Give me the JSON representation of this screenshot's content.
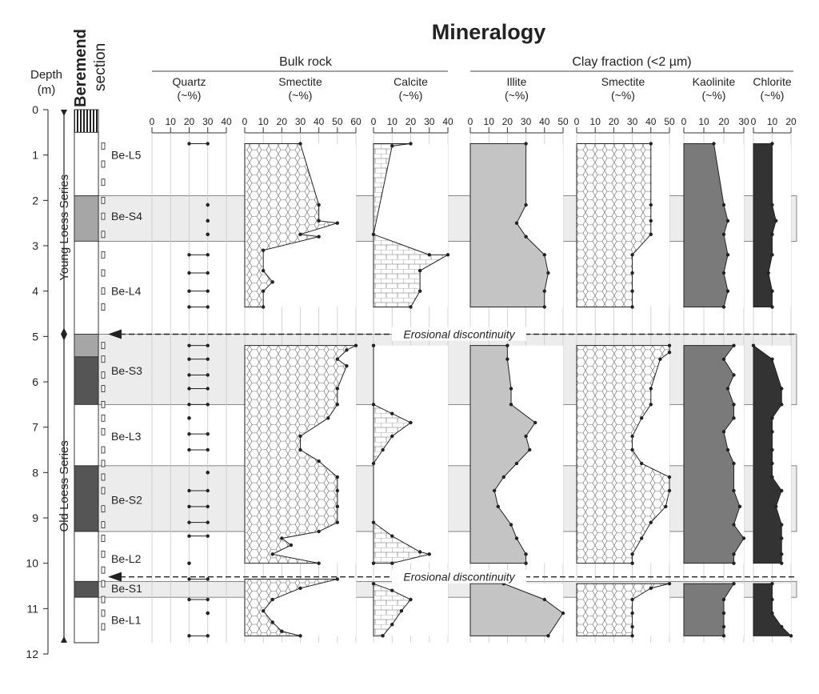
{
  "chart_data": {
    "type": "line",
    "title": "Mineralogy",
    "depth_axis": {
      "label_line1": "Depth",
      "label_line2": "(m)",
      "range": [
        0,
        12
      ],
      "ticks": [
        0,
        1,
        2,
        3,
        4,
        5,
        6,
        7,
        8,
        9,
        10,
        11,
        12
      ]
    },
    "section_label_line1": "Beremend",
    "section_label_line2": "section",
    "series_labels": {
      "young": "Young Loess Series",
      "old": "Old Loess Series"
    },
    "group_labels": {
      "bulk": "Bulk rock",
      "clay": "Clay fraction (<2 µm)"
    },
    "units": [
      {
        "name": "Be-L5",
        "depth": 1.0
      },
      {
        "name": "Be-S4",
        "depth": 2.35
      },
      {
        "name": "Be-L4",
        "depth": 4.0
      },
      {
        "name": "Be-S3",
        "depth": 5.75
      },
      {
        "name": "Be-L3",
        "depth": 7.2
      },
      {
        "name": "Be-S2",
        "depth": 8.6
      },
      {
        "name": "Be-L2",
        "depth": 9.9
      },
      {
        "name": "Be-S1",
        "depth": 10.55
      },
      {
        "name": "Be-L1",
        "depth": 11.25
      }
    ],
    "bands": [
      [
        1.9,
        2.9
      ],
      [
        4.95,
        6.5
      ],
      [
        7.85,
        9.3
      ],
      [
        10.4,
        10.75
      ]
    ],
    "column_blocks": [
      {
        "from": 0.0,
        "to": 0.5,
        "fill": "hatch"
      },
      {
        "from": 0.5,
        "to": 1.9,
        "fill": "white"
      },
      {
        "from": 1.9,
        "to": 2.9,
        "fill": "#a6a6a6"
      },
      {
        "from": 2.9,
        "to": 4.95,
        "fill": "white"
      },
      {
        "from": 4.95,
        "to": 5.45,
        "fill": "#a6a6a6"
      },
      {
        "from": 5.45,
        "to": 6.5,
        "fill": "#555555"
      },
      {
        "from": 6.5,
        "to": 7.85,
        "fill": "white"
      },
      {
        "from": 7.85,
        "to": 9.3,
        "fill": "#555555"
      },
      {
        "from": 9.3,
        "to": 10.4,
        "fill": "white"
      },
      {
        "from": 10.4,
        "to": 10.75,
        "fill": "#555555"
      },
      {
        "from": 10.75,
        "to": 11.75,
        "fill": "white"
      }
    ],
    "sample_depths": [
      0.8,
      1.2,
      1.6,
      2.0,
      2.35,
      2.75,
      3.2,
      3.6,
      4.0,
      4.35,
      5.2,
      5.5,
      5.85,
      6.15,
      6.5,
      6.8,
      7.1,
      7.5,
      7.8,
      8.1,
      8.4,
      8.8,
      9.15,
      9.45,
      9.8,
      10.15,
      10.45,
      10.8,
      11.1,
      11.4
    ],
    "discontinuities": [
      {
        "depth": 4.95,
        "label": "Erosional discontinuity"
      },
      {
        "depth": 10.3,
        "label": "Erosional discontinuity"
      }
    ],
    "panels": [
      {
        "key": "quartz",
        "label": "Quartz",
        "unit": "(~%)",
        "group": "bulk",
        "xlim": [
          0,
          40
        ],
        "ticks": [
          0,
          10,
          20,
          30,
          40
        ],
        "style": "range",
        "points": [
          [
            0.75,
            20,
            30
          ],
          [
            2.1,
            30,
            30
          ],
          [
            2.45,
            30,
            30
          ],
          [
            2.75,
            30,
            30
          ],
          [
            3.2,
            20,
            30
          ],
          [
            3.6,
            20,
            30
          ],
          [
            4.0,
            20,
            30
          ],
          [
            4.35,
            20,
            30
          ],
          [
            5.2,
            20,
            30
          ],
          [
            5.5,
            20,
            30
          ],
          [
            5.85,
            20,
            30
          ],
          [
            6.15,
            20,
            30
          ],
          [
            6.5,
            20,
            30
          ],
          [
            6.8,
            20,
            20
          ],
          [
            7.15,
            20,
            30
          ],
          [
            7.5,
            20,
            30
          ],
          [
            8.0,
            30,
            30
          ],
          [
            8.4,
            20,
            30
          ],
          [
            8.75,
            20,
            30
          ],
          [
            9.1,
            20,
            30
          ],
          [
            9.4,
            20,
            30
          ],
          [
            10.0,
            20,
            20
          ],
          [
            10.35,
            20,
            30
          ],
          [
            10.8,
            20,
            30
          ],
          [
            11.1,
            30,
            30
          ],
          [
            11.6,
            20,
            30
          ]
        ]
      },
      {
        "key": "bulk_smectite",
        "label": "Smectite",
        "unit": "(~%)",
        "group": "bulk",
        "xlim": [
          0,
          60
        ],
        "ticks": [
          0,
          10,
          20,
          30,
          40,
          50,
          60
        ],
        "style": "area",
        "fill": "hex",
        "segments": [
          [
            [
              0.75,
              30
            ],
            [
              2.1,
              40
            ],
            [
              2.45,
              40
            ],
            [
              2.5,
              50
            ],
            [
              2.75,
              30
            ],
            [
              2.8,
              40
            ],
            [
              3.1,
              10
            ],
            [
              3.55,
              10
            ],
            [
              3.8,
              15
            ],
            [
              4.0,
              10
            ],
            [
              4.35,
              10
            ]
          ],
          [
            [
              5.2,
              60
            ],
            [
              5.3,
              55
            ],
            [
              5.5,
              50
            ],
            [
              5.65,
              55
            ],
            [
              6.15,
              50
            ],
            [
              6.5,
              50
            ],
            [
              6.8,
              45
            ],
            [
              7.2,
              30
            ],
            [
              7.5,
              30
            ],
            [
              7.75,
              40
            ],
            [
              8.1,
              50
            ],
            [
              8.4,
              50
            ],
            [
              8.75,
              50
            ],
            [
              9.1,
              50
            ],
            [
              9.3,
              40
            ],
            [
              9.45,
              20
            ],
            [
              9.6,
              25
            ],
            [
              9.8,
              15
            ],
            [
              10.0,
              40
            ]
          ],
          [
            [
              10.35,
              50
            ],
            [
              10.55,
              30
            ],
            [
              10.8,
              15
            ],
            [
              11.05,
              10
            ],
            [
              11.3,
              15
            ],
            [
              11.5,
              20
            ],
            [
              11.6,
              30
            ]
          ]
        ]
      },
      {
        "key": "calcite",
        "label": "Calcite",
        "unit": "(~%)",
        "group": "bulk",
        "xlim": [
          0,
          40
        ],
        "ticks": [
          0,
          10,
          20,
          30,
          40
        ],
        "style": "area",
        "fill": "brick",
        "segments": [
          [
            [
              0.75,
              20
            ],
            [
              0.8,
              10
            ],
            [
              2.75,
              0
            ],
            [
              3.2,
              30
            ],
            [
              3.2,
              40
            ],
            [
              3.55,
              25
            ],
            [
              4.0,
              25
            ],
            [
              4.35,
              20
            ]
          ],
          [
            [
              5.2,
              0
            ],
            [
              6.5,
              0
            ],
            [
              6.7,
              10
            ],
            [
              6.9,
              20
            ],
            [
              7.2,
              10
            ],
            [
              7.5,
              5
            ],
            [
              7.8,
              0
            ],
            [
              9.1,
              0
            ],
            [
              9.4,
              10
            ],
            [
              9.75,
              25
            ],
            [
              9.8,
              30
            ],
            [
              10.0,
              10
            ],
            [
              10.0,
              0
            ]
          ],
          [
            [
              10.45,
              0
            ],
            [
              10.6,
              10
            ],
            [
              10.8,
              20
            ],
            [
              11.05,
              15
            ],
            [
              11.35,
              10
            ],
            [
              11.6,
              5
            ]
          ]
        ]
      },
      {
        "key": "illite",
        "label": "Illite",
        "unit": "(~%)",
        "group": "clay",
        "xlim": [
          0,
          50
        ],
        "ticks": [
          0,
          10,
          20,
          30,
          40,
          50
        ],
        "style": "area",
        "fill": "#c4c4c4",
        "segments": [
          [
            [
              0.75,
              30
            ],
            [
              2.1,
              30
            ],
            [
              2.5,
              25
            ],
            [
              2.8,
              30
            ],
            [
              3.2,
              40
            ],
            [
              3.6,
              42
            ],
            [
              4.0,
              40
            ],
            [
              4.35,
              40
            ]
          ],
          [
            [
              5.2,
              20
            ],
            [
              5.5,
              20
            ],
            [
              6.15,
              22
            ],
            [
              6.5,
              22
            ],
            [
              6.9,
              35
            ],
            [
              7.2,
              30
            ],
            [
              7.5,
              32
            ],
            [
              7.8,
              25
            ],
            [
              8.1,
              18
            ],
            [
              8.4,
              13
            ],
            [
              8.75,
              15
            ],
            [
              9.15,
              22
            ],
            [
              9.45,
              25
            ],
            [
              9.8,
              30
            ],
            [
              10.0,
              30
            ]
          ],
          [
            [
              10.45,
              18
            ],
            [
              10.8,
              40
            ],
            [
              11.1,
              50
            ],
            [
              11.6,
              42
            ]
          ]
        ]
      },
      {
        "key": "clay_smectite",
        "label": "Smectite",
        "unit": "(~%)",
        "group": "clay",
        "xlim": [
          0,
          50
        ],
        "ticks": [
          0,
          10,
          20,
          30,
          40,
          50
        ],
        "style": "area",
        "fill": "hex",
        "segments": [
          [
            [
              0.75,
              40
            ],
            [
              2.1,
              40
            ],
            [
              2.45,
              40
            ],
            [
              2.75,
              40
            ],
            [
              3.2,
              30
            ],
            [
              3.6,
              30
            ],
            [
              4.0,
              30
            ],
            [
              4.35,
              30
            ]
          ],
          [
            [
              5.2,
              50
            ],
            [
              5.35,
              50
            ],
            [
              5.5,
              45
            ],
            [
              6.15,
              40
            ],
            [
              6.5,
              40
            ],
            [
              6.8,
              35
            ],
            [
              7.2,
              30
            ],
            [
              7.5,
              30
            ],
            [
              7.8,
              35
            ],
            [
              8.1,
              50
            ],
            [
              8.4,
              50
            ],
            [
              8.75,
              48
            ],
            [
              9.1,
              40
            ],
            [
              9.45,
              35
            ],
            [
              9.8,
              30
            ],
            [
              10.0,
              30
            ]
          ],
          [
            [
              10.45,
              50
            ],
            [
              10.55,
              40
            ],
            [
              10.8,
              30
            ],
            [
              11.1,
              30
            ],
            [
              11.4,
              30
            ],
            [
              11.6,
              30
            ]
          ]
        ]
      },
      {
        "key": "kaolinite",
        "label": "Kaolinite",
        "unit": "(~%)",
        "group": "clay",
        "xlim": [
          0,
          30
        ],
        "ticks": [
          0,
          10,
          20,
          30
        ],
        "style": "area",
        "fill": "#7a7a7a",
        "segments": [
          [
            [
              0.75,
              15
            ],
            [
              2.1,
              20
            ],
            [
              2.45,
              22
            ],
            [
              2.75,
              20
            ],
            [
              3.2,
              22
            ],
            [
              3.6,
              20
            ],
            [
              4.0,
              22
            ],
            [
              4.35,
              20
            ]
          ],
          [
            [
              5.2,
              25
            ],
            [
              5.5,
              20
            ],
            [
              5.85,
              25
            ],
            [
              6.15,
              22
            ],
            [
              6.5,
              25
            ],
            [
              6.8,
              25
            ],
            [
              7.1,
              20
            ],
            [
              7.5,
              22
            ],
            [
              7.8,
              25
            ],
            [
              8.4,
              25
            ],
            [
              8.75,
              28
            ],
            [
              9.15,
              25
            ],
            [
              9.45,
              30
            ],
            [
              9.8,
              25
            ],
            [
              10.0,
              25
            ]
          ],
          [
            [
              10.45,
              25
            ],
            [
              10.8,
              20
            ],
            [
              11.1,
              20
            ],
            [
              11.4,
              20
            ],
            [
              11.6,
              20
            ]
          ]
        ]
      },
      {
        "key": "chlorite",
        "label": "Chlorite",
        "unit": "(~%)",
        "group": "clay",
        "xlim": [
          0,
          20
        ],
        "ticks": [
          0,
          10,
          20
        ],
        "style": "area",
        "fill": "#333333",
        "segments": [
          [
            [
              0.75,
              10
            ],
            [
              2.1,
              10
            ],
            [
              2.45,
              12
            ],
            [
              2.75,
              10
            ],
            [
              3.2,
              10
            ],
            [
              3.6,
              8
            ],
            [
              4.0,
              10
            ],
            [
              4.35,
              10
            ]
          ],
          [
            [
              5.2,
              0
            ],
            [
              5.5,
              10
            ],
            [
              6.15,
              15
            ],
            [
              6.5,
              15
            ],
            [
              6.8,
              10
            ],
            [
              7.1,
              10
            ],
            [
              7.5,
              10
            ],
            [
              7.8,
              10
            ],
            [
              8.1,
              10
            ],
            [
              8.4,
              15
            ],
            [
              8.75,
              12
            ],
            [
              9.15,
              15
            ],
            [
              9.45,
              15
            ],
            [
              9.8,
              15
            ],
            [
              10.0,
              15
            ]
          ],
          [
            [
              10.45,
              10
            ],
            [
              10.8,
              10
            ],
            [
              11.1,
              10
            ],
            [
              11.4,
              15
            ],
            [
              11.6,
              20
            ]
          ]
        ]
      }
    ]
  }
}
